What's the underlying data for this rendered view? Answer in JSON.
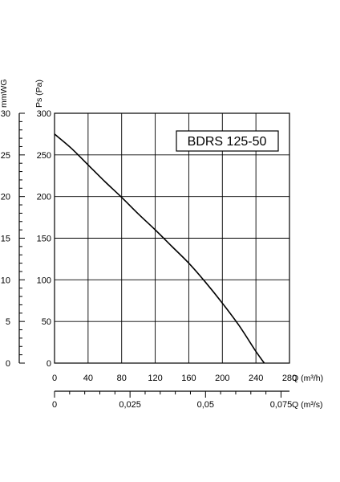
{
  "chart_data": {
    "type": "line",
    "title": "BDRS 125-50",
    "x_axis": {
      "label": "Q (m³/h)",
      "range": [
        0,
        280
      ],
      "ticks": [
        "0",
        "40",
        "80",
        "120",
        "160",
        "200",
        "240",
        "280"
      ]
    },
    "x2_axis": {
      "label": "Q (m³/s)",
      "range": [
        0,
        0.0778
      ],
      "ticks": [
        "0",
        "0,025",
        "0,05",
        "0,075"
      ],
      "tick_values": [
        0,
        0.025,
        0.05,
        0.075
      ]
    },
    "y_axis": {
      "label": "Ps (Pa)",
      "range": [
        0,
        300
      ],
      "ticks": [
        "0",
        "50",
        "100",
        "150",
        "200",
        "250",
        "300"
      ]
    },
    "y2_axis": {
      "label": "mmWG",
      "range": [
        0,
        30
      ],
      "ticks": [
        "0",
        "5",
        "10",
        "15",
        "20",
        "25",
        "30"
      ]
    },
    "grid": true,
    "series": [
      {
        "x": [
          0,
          20,
          40,
          60,
          80,
          100,
          120,
          140,
          160,
          180,
          200,
          220,
          240,
          250
        ],
        "y": [
          275,
          258,
          238,
          218,
          199,
          179,
          160,
          140,
          120,
          97,
          72,
          45,
          14,
          0
        ]
      }
    ]
  }
}
